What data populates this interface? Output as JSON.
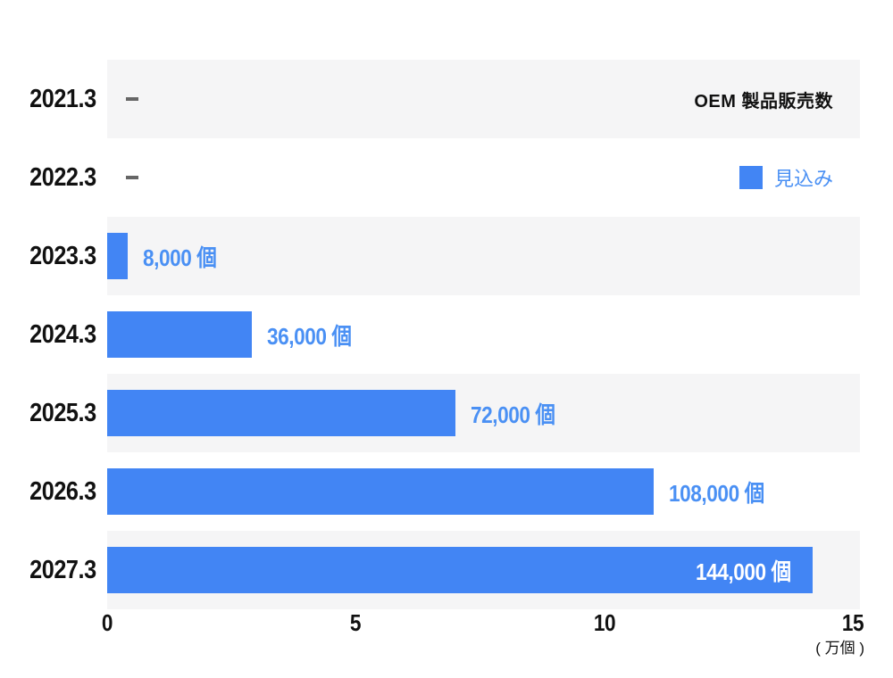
{
  "colors": {
    "bar": "#4285f4",
    "value_label": "#4a90f4",
    "label_on_bar": "#ffffff",
    "row_alt_background": "#f5f5f6",
    "no_data_dash": "#666666",
    "text": "#111111"
  },
  "chart_data": {
    "type": "bar",
    "orientation": "horizontal",
    "title": "OEM 製品販売数",
    "legend": {
      "label": "見込み",
      "position": "top-right"
    },
    "unit": "個",
    "axis_unit_label": "( 万個 )",
    "xlim": [
      0,
      15
    ],
    "x_ticks": [
      {
        "label": "0",
        "value": 0,
        "pct": 0
      },
      {
        "label": "5",
        "value": 5,
        "pct": 33.33
      },
      {
        "label": "10",
        "value": 10,
        "pct": 66.67
      },
      {
        "label": "15",
        "value": 15,
        "pct": 100
      }
    ],
    "no_data_marker": "–",
    "rows": [
      {
        "year": "2021.3",
        "value": null,
        "label": "–",
        "bar_pct": 0
      },
      {
        "year": "2022.3",
        "value": null,
        "label": "–",
        "bar_pct": 0
      },
      {
        "year": "2023.3",
        "value": 8000,
        "label": "8,000 個",
        "bar_pct": 2.7
      },
      {
        "year": "2024.3",
        "value": 36000,
        "label": "36,000 個",
        "bar_pct": 19.2
      },
      {
        "year": "2025.3",
        "value": 72000,
        "label": "72,000 個",
        "bar_pct": 46.3
      },
      {
        "year": "2026.3",
        "value": 108000,
        "label": "108,000 個",
        "bar_pct": 72.6
      },
      {
        "year": "2027.3",
        "value": 144000,
        "label": "144,000 個",
        "bar_pct": 93.7
      }
    ]
  }
}
